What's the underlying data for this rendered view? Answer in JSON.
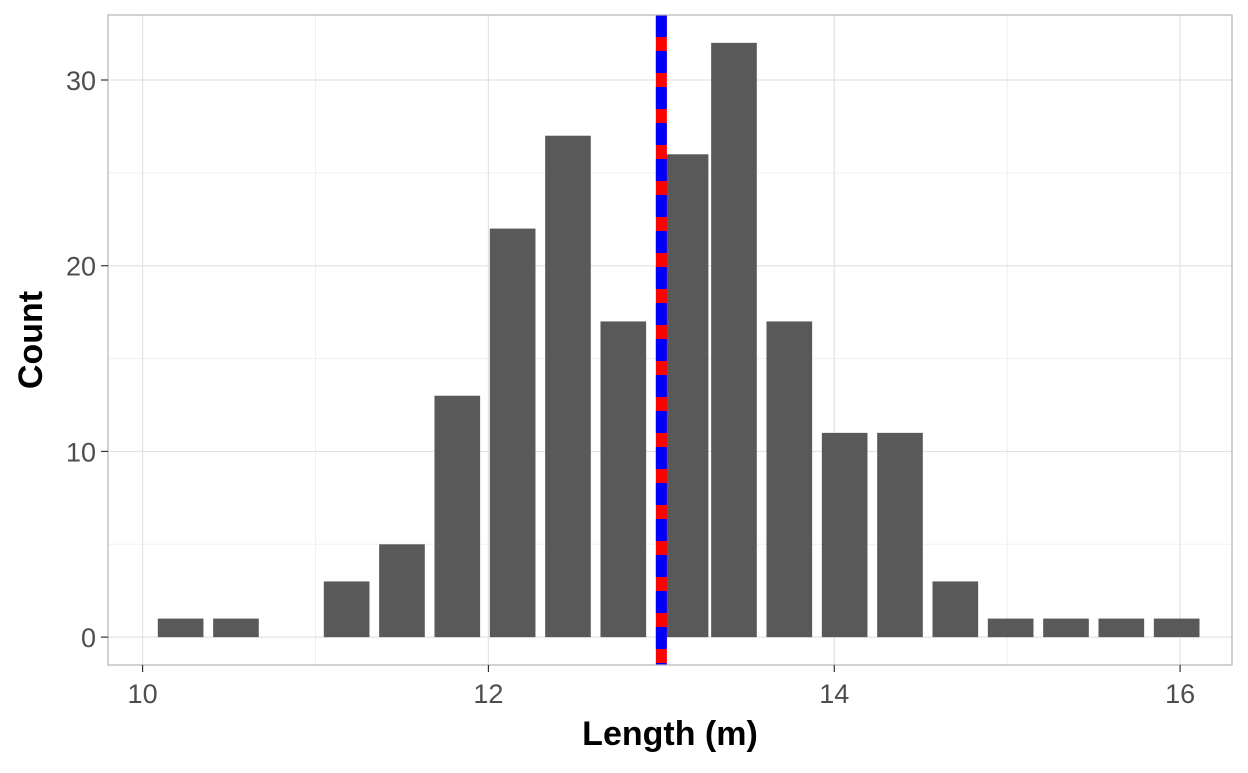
{
  "chart_data": {
    "type": "bar",
    "xlabel": "Length (m)",
    "ylabel": "Count",
    "xlim": [
      9.8,
      16.3
    ],
    "ylim": [
      -1.5,
      33.5
    ],
    "x_ticks": [
      10,
      12,
      14,
      16
    ],
    "y_ticks": [
      0,
      10,
      20,
      30
    ],
    "bin_width": 0.32,
    "bars": [
      {
        "x": 10.22,
        "count": 1
      },
      {
        "x": 10.54,
        "count": 1
      },
      {
        "x": 11.18,
        "count": 3
      },
      {
        "x": 11.5,
        "count": 5
      },
      {
        "x": 11.82,
        "count": 13
      },
      {
        "x": 12.14,
        "count": 22
      },
      {
        "x": 12.46,
        "count": 27
      },
      {
        "x": 12.78,
        "count": 17
      },
      {
        "x": 13.14,
        "count": 26
      },
      {
        "x": 13.42,
        "count": 32
      },
      {
        "x": 13.74,
        "count": 17
      },
      {
        "x": 14.06,
        "count": 11
      },
      {
        "x": 14.38,
        "count": 11
      },
      {
        "x": 14.7,
        "count": 3
      },
      {
        "x": 15.02,
        "count": 1
      },
      {
        "x": 15.34,
        "count": 1
      },
      {
        "x": 15.66,
        "count": 1
      },
      {
        "x": 15.98,
        "count": 1
      }
    ],
    "reference_lines": [
      {
        "x": 13.0,
        "color": "#ff0000",
        "style": "solid"
      },
      {
        "x": 13.0,
        "color": "#0000ff",
        "style": "dashed"
      }
    ],
    "bar_color": "#595959",
    "grid": true,
    "legend": "none"
  }
}
